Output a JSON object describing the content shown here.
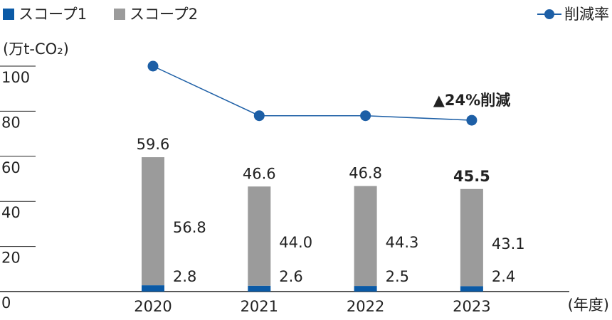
{
  "chart_data": {
    "type": "bar",
    "y_axis_label": "(万t-CO₂)",
    "x_axis_label": "(年度)",
    "categories": [
      "2020",
      "2021",
      "2022",
      "2023"
    ],
    "series": [
      {
        "name": "スコープ1",
        "color": "#0b5aa6",
        "values": [
          2.8,
          2.6,
          2.5,
          2.4
        ]
      },
      {
        "name": "スコープ2",
        "color": "#9b9b9b",
        "values": [
          56.8,
          44.0,
          44.3,
          43.1
        ],
        "value_labels": [
          "56.8",
          "44.0",
          "44.3",
          "43.1"
        ]
      },
      {
        "name": "削減率",
        "type": "line",
        "color": "#1d5fa6",
        "values": [
          100,
          78,
          78,
          76
        ]
      }
    ],
    "totals": [
      59.6,
      46.6,
      46.8,
      45.5
    ],
    "annotation": "▲24%削減",
    "ylim": [
      0,
      100
    ],
    "yticks": [
      0,
      20,
      40,
      60,
      80,
      100
    ]
  }
}
